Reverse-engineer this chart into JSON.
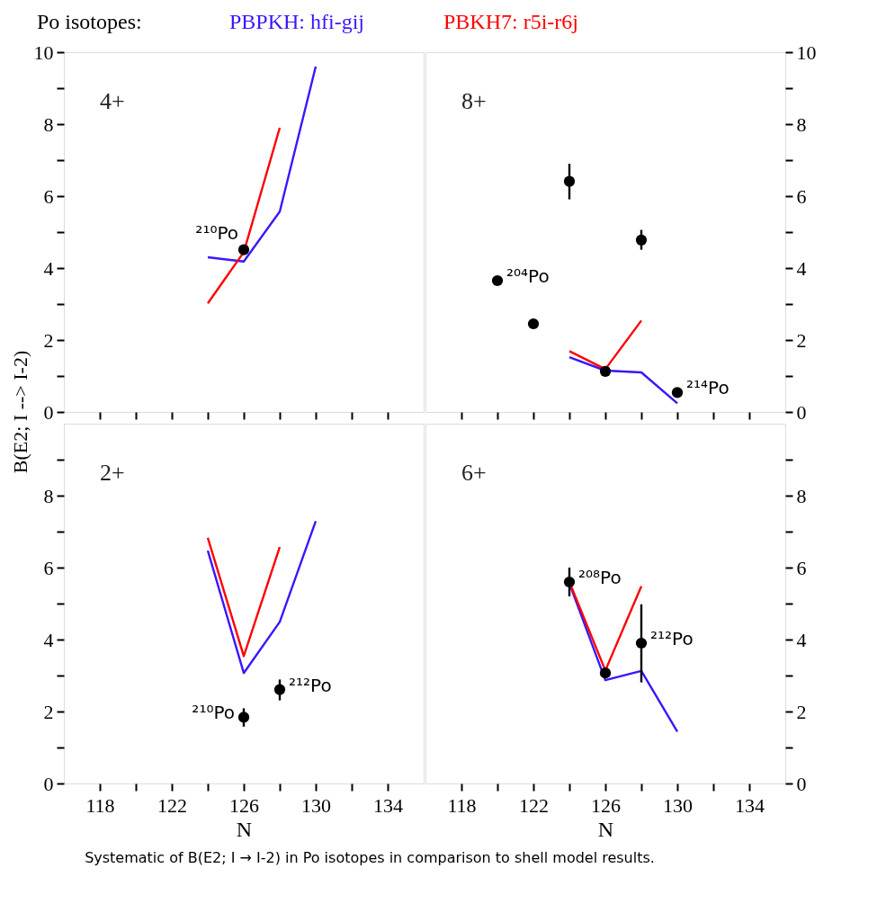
{
  "chart_data": [
    {
      "type": "line",
      "title": "4+",
      "legend_title": "Po isotopes:",
      "legend": "top",
      "xlim": [
        116,
        136
      ],
      "ylim": [
        0,
        10
      ],
      "tick_labels": "y",
      "xticks": [
        118,
        {
          "value": 120,
          "label": null
        },
        122,
        {
          "value": 124,
          "label": null
        },
        126,
        {
          "value": 128,
          "label": null
        },
        130,
        {
          "value": 132,
          "label": null
        },
        134
      ],
      "yticks": [
        0,
        {
          "value": 1,
          "label": null
        },
        2,
        {
          "value": 3,
          "label": null
        },
        4,
        {
          "value": 5,
          "label": null
        },
        6,
        {
          "value": 7,
          "label": null
        },
        8,
        {
          "value": 9,
          "label": null
        },
        10
      ],
      "series": [
        {
          "name": "PBPKH: hfi-gij",
          "color": "#3c14ff",
          "x": [
            124,
            126,
            128,
            130
          ],
          "values": [
            4.3,
            4.18,
            5.57,
            9.6
          ]
        },
        {
          "name": "PBKH7: r5i-r6j",
          "color": "#ff0000",
          "x": [
            124,
            126,
            128
          ],
          "values": [
            3.02,
            4.44,
            7.9
          ]
        },
        {
          "type": "scatter",
          "marker": "circle",
          "color": "#000000",
          "x": [
            126
          ],
          "values": [
            4.51
          ]
        }
      ],
      "annotations": [
        {
          "text": "²¹⁰Po",
          "x": 126,
          "y": 4.51
        }
      ]
    },
    {
      "type": "line",
      "title": "8+",
      "xlim": [
        116,
        136
      ],
      "ylim": [
        0,
        10
      ],
      "tick_labels": "y",
      "xticks": [
        118,
        {
          "value": 120,
          "label": null
        },
        122,
        {
          "value": 124,
          "label": null
        },
        126,
        {
          "value": 128,
          "label": null
        },
        130,
        {
          "value": 132,
          "label": null
        },
        134
      ],
      "yticks": [
        0,
        {
          "value": 1,
          "label": null
        },
        2,
        {
          "value": 3,
          "label": null
        },
        4,
        {
          "value": 5,
          "label": null
        },
        6,
        {
          "value": 7,
          "label": null
        },
        8,
        {
          "value": 9,
          "label": null
        },
        10
      ],
      "series": [
        {
          "color": "#3c14ff",
          "x": [
            124,
            126,
            128,
            130
          ],
          "values": [
            1.52,
            1.15,
            1.1,
            0.24
          ]
        },
        {
          "color": "#ff0000",
          "x": [
            124,
            126,
            128
          ],
          "values": [
            1.69,
            1.19,
            2.54
          ]
        },
        {
          "type": "scatter",
          "marker": "circle",
          "color": "#000000",
          "x": [
            120,
            122,
            124,
            126,
            128,
            130
          ],
          "values": [
            3.65,
            2.45,
            6.41,
            1.13,
            4.78,
            0.54
          ],
          "errors": [
            null,
            null,
            [
              5.91,
              6.9
            ],
            null,
            [
              4.51,
              5.06
            ],
            null
          ]
        }
      ],
      "annotations": [
        {
          "text": "²⁰⁴Po",
          "x": 120,
          "y": 3.65
        },
        {
          "text": "²¹⁴Po",
          "x": 130,
          "y": 0.54
        }
      ]
    },
    {
      "type": "line",
      "title": "2+",
      "xlabel": "N",
      "ylabel": "B(E2; I --> I-2)",
      "xlim": [
        116,
        136
      ],
      "ylim": [
        0,
        10
      ],
      "xticks": [
        118,
        {
          "value": 120,
          "label": null
        },
        122,
        {
          "value": 124,
          "label": null
        },
        126,
        {
          "value": 128,
          "label": null
        },
        130,
        {
          "value": 132,
          "label": null
        },
        134
      ],
      "yticks": [
        0,
        {
          "value": 1,
          "label": null
        },
        2,
        {
          "value": 3,
          "label": null
        },
        4,
        {
          "value": 5,
          "label": null
        },
        6,
        {
          "value": 7,
          "label": null
        },
        8,
        {
          "value": 9,
          "label": null
        }
      ],
      "series": [
        {
          "color": "#3c14ff",
          "x": [
            124,
            126,
            128,
            130
          ],
          "values": [
            6.47,
            3.07,
            4.49,
            7.29
          ]
        },
        {
          "color": "#ff0000",
          "x": [
            124,
            126,
            128
          ],
          "values": [
            6.83,
            3.54,
            6.57
          ]
        },
        {
          "type": "scatter",
          "marker": "circle",
          "color": "#000000",
          "x": [
            126,
            128
          ],
          "values": [
            1.84,
            2.61
          ],
          "errors": [
            [
              1.58,
              2.09
            ],
            [
              2.31,
              2.89
            ]
          ]
        }
      ],
      "annotations": [
        {
          "text": "²¹⁰Po",
          "x": 126,
          "y": 1.84
        },
        {
          "text": "²¹²Po",
          "x": 128,
          "y": 2.61
        }
      ]
    },
    {
      "type": "line",
      "title": "6+",
      "xlabel": "N",
      "xlim": [
        116,
        136
      ],
      "ylim": [
        0,
        10
      ],
      "xticks": [
        118,
        {
          "value": 120,
          "label": null
        },
        122,
        {
          "value": 124,
          "label": null
        },
        126,
        {
          "value": 128,
          "label": null
        },
        130,
        {
          "value": 132,
          "label": null
        },
        134
      ],
      "yticks": [
        0,
        {
          "value": 1,
          "label": null
        },
        2,
        {
          "value": 3,
          "label": null
        },
        4,
        {
          "value": 5,
          "label": null
        },
        6,
        {
          "value": 7,
          "label": null
        },
        8,
        {
          "value": 9,
          "label": null
        }
      ],
      "series": [
        {
          "color": "#3c14ff",
          "x": [
            124,
            126,
            128,
            130
          ],
          "values": [
            5.56,
            2.87,
            3.13,
            1.44
          ]
        },
        {
          "color": "#ff0000",
          "x": [
            124,
            126,
            128
          ],
          "values": [
            5.6,
            3.14,
            5.48
          ]
        },
        {
          "type": "scatter",
          "marker": "circle",
          "color": "#000000",
          "x": [
            124,
            126,
            128
          ],
          "values": [
            5.6,
            3.07,
            3.9
          ],
          "errors": [
            [
              5.2,
              6.0
            ],
            null,
            [
              2.81,
              4.98
            ]
          ]
        }
      ],
      "annotations": [
        {
          "text": "²⁰⁸Po",
          "x": 124,
          "y": 5.6
        },
        {
          "text": "²¹²Po",
          "x": 128,
          "y": 3.9
        },
        "Systematic of B(E2; I → I-2) in Po isotopes in comparison to shell model results."
      ]
    }
  ]
}
